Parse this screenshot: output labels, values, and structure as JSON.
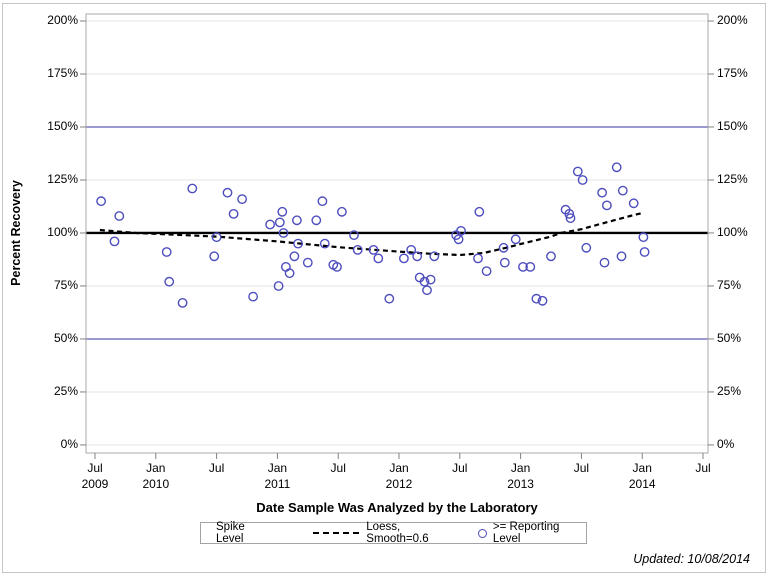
{
  "page": {
    "updated_note": "Updated: 10/08/2014"
  },
  "legend": {
    "title": "Spike Level",
    "loess_label": "Loess, Smooth=0.6",
    "reporting_label": ">= Reporting Level"
  },
  "chart_data": {
    "type": "scatter",
    "title": "",
    "xlabel": "Date Sample Was Analyzed by the Laboratory",
    "ylabel": "Percent Recovery",
    "xlim": [
      2009.426,
      2014.541
    ],
    "ylim": [
      -3.8,
      203.3
    ],
    "grid": "on",
    "legend_position": "bottom",
    "colors": {
      "marker": "#4d4dbe",
      "reference_blue": "#3333a0",
      "spike_line": "#000000",
      "loess_line": "#000000",
      "gridline": "#e3e3e3",
      "axis": "#a9a9a9",
      "tick": "#808080"
    },
    "x_ticks": [
      {
        "value": 2009.5,
        "line1": "Jul",
        "line2": "2009"
      },
      {
        "value": 2010.0,
        "line1": "Jan",
        "line2": "2010"
      },
      {
        "value": 2010.5,
        "line1": "Jul",
        "line2": ""
      },
      {
        "value": 2011.0,
        "line1": "Jan",
        "line2": "2011"
      },
      {
        "value": 2011.5,
        "line1": "Jul",
        "line2": ""
      },
      {
        "value": 2012.0,
        "line1": "Jan",
        "line2": "2012"
      },
      {
        "value": 2012.5,
        "line1": "Jul",
        "line2": ""
      },
      {
        "value": 2013.0,
        "line1": "Jan",
        "line2": "2013"
      },
      {
        "value": 2013.5,
        "line1": "Jul",
        "line2": ""
      },
      {
        "value": 2014.0,
        "line1": "Jan",
        "line2": "2014"
      },
      {
        "value": 2014.5,
        "line1": "Jul",
        "line2": ""
      }
    ],
    "y_ticks": [
      {
        "value": 0,
        "label": "0%"
      },
      {
        "value": 25,
        "label": "25%"
      },
      {
        "value": 50,
        "label": "50%"
      },
      {
        "value": 75,
        "label": "75%"
      },
      {
        "value": 100,
        "label": "100%"
      },
      {
        "value": 125,
        "label": "125%"
      },
      {
        "value": 150,
        "label": "150%"
      },
      {
        "value": 175,
        "label": "175%"
      },
      {
        "value": 200,
        "label": "200%"
      }
    ],
    "grid_values": [
      0,
      25,
      75,
      125,
      175,
      200
    ],
    "reference_lines": [
      {
        "name": "lower-control-limit",
        "value": 50,
        "color": "#3333a0",
        "width": 1
      },
      {
        "name": "upper-control-limit",
        "value": 150,
        "color": "#3333a0",
        "width": 1
      },
      {
        "name": "spike-level",
        "value": 100,
        "color": "#000000",
        "width": 2.4
      }
    ],
    "series": [
      {
        "name": "Loess, Smooth=0.6",
        "type": "line",
        "style": "dashed",
        "color": "#000000",
        "points": [
          [
            2009.54,
            101.4
          ],
          [
            2009.84,
            100.0
          ],
          [
            2010.0,
            99.6
          ],
          [
            2010.5,
            98.3
          ],
          [
            2011.0,
            96.0
          ],
          [
            2011.5,
            93.3
          ],
          [
            2012.0,
            91.2
          ],
          [
            2012.25,
            90.2
          ],
          [
            2012.5,
            89.6
          ],
          [
            2012.7,
            90.6
          ],
          [
            2012.88,
            93.0
          ],
          [
            2013.0,
            94.8
          ],
          [
            2013.25,
            98.3
          ],
          [
            2013.33,
            100.0
          ],
          [
            2013.5,
            101.8
          ],
          [
            2013.64,
            104.0
          ],
          [
            2013.75,
            105.7
          ],
          [
            2013.9,
            108.0
          ],
          [
            2013.99,
            109.3
          ]
        ]
      },
      {
        "name": ">= Reporting Level",
        "type": "scatter",
        "marker": "circle",
        "color": "#4d4dbe",
        "points": [
          [
            2009.55,
            115
          ],
          [
            2009.66,
            96
          ],
          [
            2009.7,
            108
          ],
          [
            2010.09,
            91
          ],
          [
            2010.11,
            77
          ],
          [
            2010.22,
            67
          ],
          [
            2010.3,
            121
          ],
          [
            2010.48,
            89
          ],
          [
            2010.5,
            98
          ],
          [
            2010.59,
            119
          ],
          [
            2010.64,
            109
          ],
          [
            2010.71,
            116
          ],
          [
            2010.8,
            70
          ],
          [
            2010.94,
            104
          ],
          [
            2011.01,
            75
          ],
          [
            2011.02,
            105
          ],
          [
            2011.04,
            110
          ],
          [
            2011.05,
            100
          ],
          [
            2011.07,
            84
          ],
          [
            2011.1,
            81
          ],
          [
            2011.14,
            89
          ],
          [
            2011.16,
            106
          ],
          [
            2011.17,
            95
          ],
          [
            2011.25,
            86
          ],
          [
            2011.32,
            106
          ],
          [
            2011.37,
            115
          ],
          [
            2011.39,
            95
          ],
          [
            2011.46,
            85
          ],
          [
            2011.49,
            84
          ],
          [
            2011.53,
            110
          ],
          [
            2011.63,
            99
          ],
          [
            2011.66,
            92
          ],
          [
            2011.79,
            92
          ],
          [
            2011.83,
            88
          ],
          [
            2011.92,
            69
          ],
          [
            2012.04,
            88
          ],
          [
            2012.1,
            92
          ],
          [
            2012.15,
            89
          ],
          [
            2012.17,
            79
          ],
          [
            2012.21,
            77
          ],
          [
            2012.23,
            73
          ],
          [
            2012.26,
            78
          ],
          [
            2012.29,
            89
          ],
          [
            2012.47,
            99
          ],
          [
            2012.49,
            97
          ],
          [
            2012.51,
            101
          ],
          [
            2012.65,
            88
          ],
          [
            2012.66,
            110
          ],
          [
            2012.72,
            82
          ],
          [
            2012.86,
            93
          ],
          [
            2012.87,
            86
          ],
          [
            2012.96,
            97
          ],
          [
            2013.02,
            84
          ],
          [
            2013.08,
            84
          ],
          [
            2013.13,
            69
          ],
          [
            2013.18,
            68
          ],
          [
            2013.25,
            89
          ],
          [
            2013.37,
            111
          ],
          [
            2013.4,
            109
          ],
          [
            2013.41,
            107
          ],
          [
            2013.47,
            129
          ],
          [
            2013.51,
            125
          ],
          [
            2013.54,
            93
          ],
          [
            2013.67,
            119
          ],
          [
            2013.69,
            86
          ],
          [
            2013.71,
            113
          ],
          [
            2013.79,
            131
          ],
          [
            2013.83,
            89
          ],
          [
            2013.84,
            120
          ],
          [
            2013.93,
            114
          ],
          [
            2014.01,
            98
          ],
          [
            2014.02,
            91
          ]
        ]
      }
    ]
  }
}
